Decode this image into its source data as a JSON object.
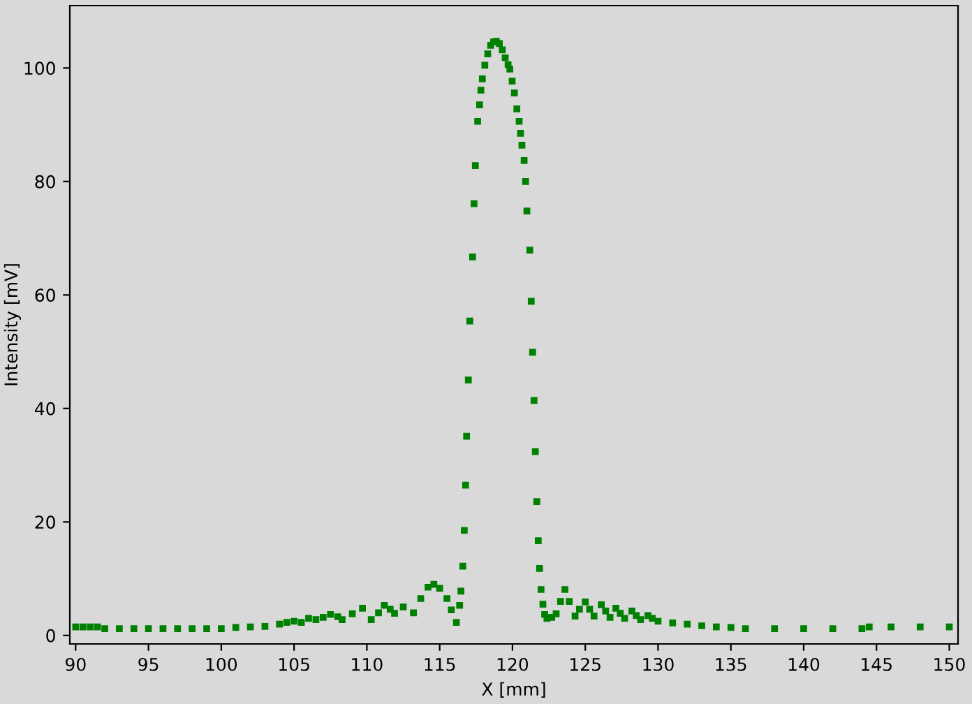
{
  "chart_data": {
    "type": "scatter",
    "xlabel": "X [mm]",
    "ylabel": "Intensity [mV]",
    "xlim": [
      89.6,
      150.6
    ],
    "ylim": [
      -1.5,
      111
    ],
    "xticks": [
      90,
      95,
      100,
      105,
      110,
      115,
      120,
      125,
      130,
      135,
      140,
      145,
      150
    ],
    "yticks": [
      0,
      20,
      40,
      60,
      80,
      100
    ],
    "grid": false,
    "marker": "square",
    "series": [
      {
        "color": "#008000",
        "x": [
          90,
          90.5,
          91,
          91.5,
          92,
          93,
          94,
          95,
          96,
          97,
          98,
          99,
          100,
          101,
          102,
          103,
          104,
          104.5,
          105,
          105.5,
          106,
          106.5,
          107,
          107.5,
          108,
          108.3,
          109,
          109.7,
          110.3,
          110.8,
          111.2,
          111.6,
          111.9,
          112.5,
          113.2,
          113.7,
          114.2,
          114.6,
          115,
          115.5,
          115.8,
          116.15,
          116.37,
          116.46,
          116.59,
          116.69,
          116.78,
          116.85,
          116.97,
          117.07,
          117.26,
          117.36,
          117.45,
          117.61,
          117.74,
          117.83,
          117.93,
          118.1,
          118.3,
          118.5,
          118.7,
          118.89,
          119.1,
          119.3,
          119.5,
          119.7,
          119.82,
          119.98,
          120.13,
          120.3,
          120.46,
          120.55,
          120.65,
          120.8,
          120.9,
          120.99,
          121.19,
          121.29,
          121.38,
          121.48,
          121.57,
          121.67,
          121.77,
          121.86,
          121.96,
          122.09,
          122.21,
          122.37,
          122.7,
          123.0,
          123.3,
          123.6,
          123.9,
          124.3,
          124.6,
          125.0,
          125.3,
          125.6,
          126.1,
          126.4,
          126.7,
          127.1,
          127.4,
          127.7,
          128.2,
          128.5,
          128.8,
          129.3,
          129.6,
          130,
          131,
          132,
          133,
          134,
          135,
          136,
          138,
          140,
          142,
          144,
          144.5,
          146,
          148,
          150
        ],
        "values": [
          1.5,
          1.5,
          1.5,
          1.5,
          1.2,
          1.2,
          1.2,
          1.2,
          1.2,
          1.2,
          1.2,
          1.2,
          1.2,
          1.4,
          1.5,
          1.6,
          2.0,
          2.3,
          2.5,
          2.3,
          3.0,
          2.8,
          3.2,
          3.7,
          3.3,
          2.8,
          3.8,
          4.8,
          2.8,
          4.0,
          5.3,
          4.6,
          3.9,
          5.0,
          4.0,
          6.5,
          8.5,
          9.0,
          8.3,
          6.5,
          4.5,
          2.3,
          5.3,
          7.8,
          12.2,
          18.5,
          26.5,
          35.1,
          45.0,
          55.4,
          66.7,
          76.1,
          82.8,
          90.6,
          93.5,
          96.1,
          98.1,
          100.5,
          102.5,
          104.0,
          104.6,
          104.7,
          104.3,
          103.2,
          101.8,
          100.6,
          99.8,
          97.7,
          95.6,
          92.8,
          90.6,
          88.5,
          86.4,
          83.7,
          80.0,
          74.8,
          67.9,
          58.9,
          49.9,
          41.4,
          32.4,
          23.6,
          16.7,
          11.8,
          8.1,
          5.5,
          3.7,
          3.0,
          3.2,
          3.8,
          6.0,
          8.1,
          6.0,
          3.4,
          4.6,
          5.9,
          4.6,
          3.4,
          5.4,
          4.3,
          3.2,
          4.8,
          3.9,
          3.0,
          4.3,
          3.5,
          2.8,
          3.5,
          3.0,
          2.5,
          2.2,
          2.0,
          1.7,
          1.5,
          1.4,
          1.2,
          1.2,
          1.2,
          1.2,
          1.2,
          1.5,
          1.5,
          1.5,
          1.5
        ]
      }
    ]
  }
}
